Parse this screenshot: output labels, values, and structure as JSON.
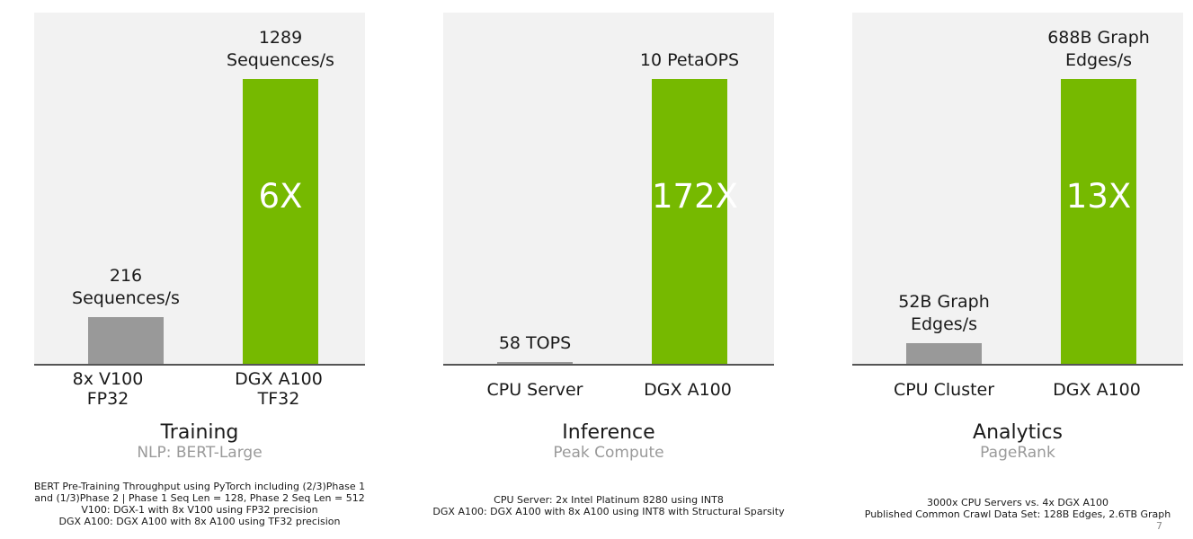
{
  "chart_data": [
    {
      "type": "bar",
      "title": "Training",
      "subtitle": "NLP: BERT-Large",
      "categories": [
        "8x V100\nFP32",
        "DGX A100\nTF32"
      ],
      "values": [
        216,
        1289
      ],
      "value_labels": [
        "216\nSequences/s",
        "1289\nSequences/s"
      ],
      "unit": "Sequences/s",
      "multiplier": "6X",
      "colors": [
        "#999999",
        "#76b900"
      ],
      "footnote": "BERT Pre-Training Throughput using PyTorch including  (2/3)Phase 1\nand (1/3)Phase 2 | Phase 1 Seq Len = 128, Phase 2 Seq Len = 512\nV100: DGX-1 with 8x V100 using FP32 precision\nDGX A100: DGX A100 with 8x A100 using TF32 precision"
    },
    {
      "type": "bar",
      "title": "Inference",
      "subtitle": "Peak Compute",
      "categories": [
        "CPU Server",
        "DGX A100"
      ],
      "values": [
        0.058,
        10
      ],
      "value_labels": [
        "58 TOPS",
        "10 PetaOPS"
      ],
      "unit": "PetaOPS",
      "multiplier": "172X",
      "colors": [
        "#999999",
        "#76b900"
      ],
      "footnote": "CPU Server: 2x Intel Platinum 8280 using INT8\nDGX A100: DGX A100 with 8x A100 using INT8 with Structural Sparsity"
    },
    {
      "type": "bar",
      "title": "Analytics",
      "subtitle": "PageRank",
      "categories": [
        "CPU Cluster",
        "DGX A100"
      ],
      "values": [
        52,
        688
      ],
      "value_labels": [
        "52B Graph\nEdges/s",
        "688B Graph\nEdges/s"
      ],
      "unit": "B Graph Edges/s",
      "multiplier": "13X",
      "colors": [
        "#999999",
        "#76b900"
      ],
      "footnote": "3000x CPU Servers vs. 4x DGX A100\nPublished  Common Crawl Data Set: 128B Edges, 2.6TB Graph"
    }
  ],
  "page_number": "7"
}
